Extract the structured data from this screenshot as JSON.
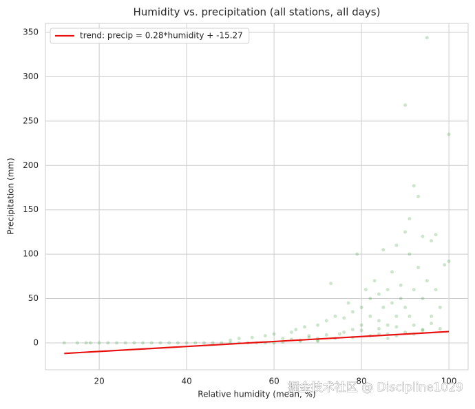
{
  "chart_data": {
    "type": "scatter",
    "title": "Humidity vs. precipitation (all stations, all days)",
    "x_label": "Relative humidity (mean, %)",
    "y_label": "Precipitation (mm)",
    "xlim": [
      7.7,
      104.4
    ],
    "ylim": [
      -30.3,
      360.1
    ],
    "xticks": [
      20,
      40,
      60,
      80,
      100
    ],
    "yticks": [
      0,
      50,
      100,
      150,
      200,
      250,
      300,
      350
    ],
    "grid": true,
    "legend": "upper left",
    "series": [
      {
        "type": "scatter",
        "color": "#008000",
        "alpha": 0.2,
        "x": [
          12,
          15,
          17,
          18,
          20,
          22,
          24,
          26,
          28,
          30,
          32,
          34,
          36,
          38,
          40,
          42,
          44,
          46,
          48,
          50,
          52,
          54,
          56,
          58,
          60,
          50,
          52,
          55,
          58,
          60,
          62,
          64,
          65,
          67,
          68,
          70,
          70,
          72,
          73,
          74,
          75,
          76,
          77,
          78,
          78,
          79,
          80,
          80,
          81,
          82,
          82,
          83,
          84,
          84,
          85,
          85,
          86,
          86,
          87,
          87,
          88,
          88,
          89,
          89,
          90,
          90,
          91,
          91,
          91,
          92,
          92,
          93,
          93,
          94,
          94,
          95,
          95,
          96,
          96,
          97,
          97,
          98,
          99,
          100,
          100,
          90,
          84,
          86,
          88,
          92,
          94,
          70,
          66,
          62,
          64,
          68,
          72,
          76,
          80,
          84,
          88,
          92,
          96,
          66,
          70,
          74,
          78,
          82,
          86,
          90,
          94,
          98
        ],
        "values": [
          0,
          0,
          0,
          0,
          0,
          0,
          0,
          0,
          0,
          0,
          0,
          0,
          0,
          0,
          0,
          0,
          0,
          0,
          0,
          0,
          0,
          0,
          0,
          0,
          0,
          3,
          5,
          6,
          8,
          10,
          5,
          12,
          15,
          18,
          8,
          20,
          5,
          25,
          67,
          30,
          10,
          28,
          45,
          15,
          35,
          100,
          40,
          20,
          60,
          30,
          50,
          70,
          25,
          55,
          40,
          105,
          60,
          20,
          80,
          45,
          110,
          30,
          65,
          50,
          125,
          40,
          100,
          140,
          30,
          177,
          60,
          165,
          85,
          120,
          50,
          344,
          70,
          115,
          30,
          122,
          60,
          40,
          88,
          235,
          92,
          268,
          10,
          5,
          8,
          10,
          15,
          2,
          3,
          1,
          4,
          6,
          9,
          12,
          14,
          16,
          18,
          20,
          22,
          2,
          3,
          5,
          6,
          8,
          10,
          12,
          14,
          16
        ]
      },
      {
        "type": "line",
        "name": "trend: precip = 0.28*humidity + -15.27",
        "color": "#e8110f",
        "x": [
          12,
          100
        ],
        "values": [
          -11.91,
          12.73
        ]
      }
    ],
    "annotations": [
      "掘金技术社区 @ Discipline1029"
    ]
  }
}
